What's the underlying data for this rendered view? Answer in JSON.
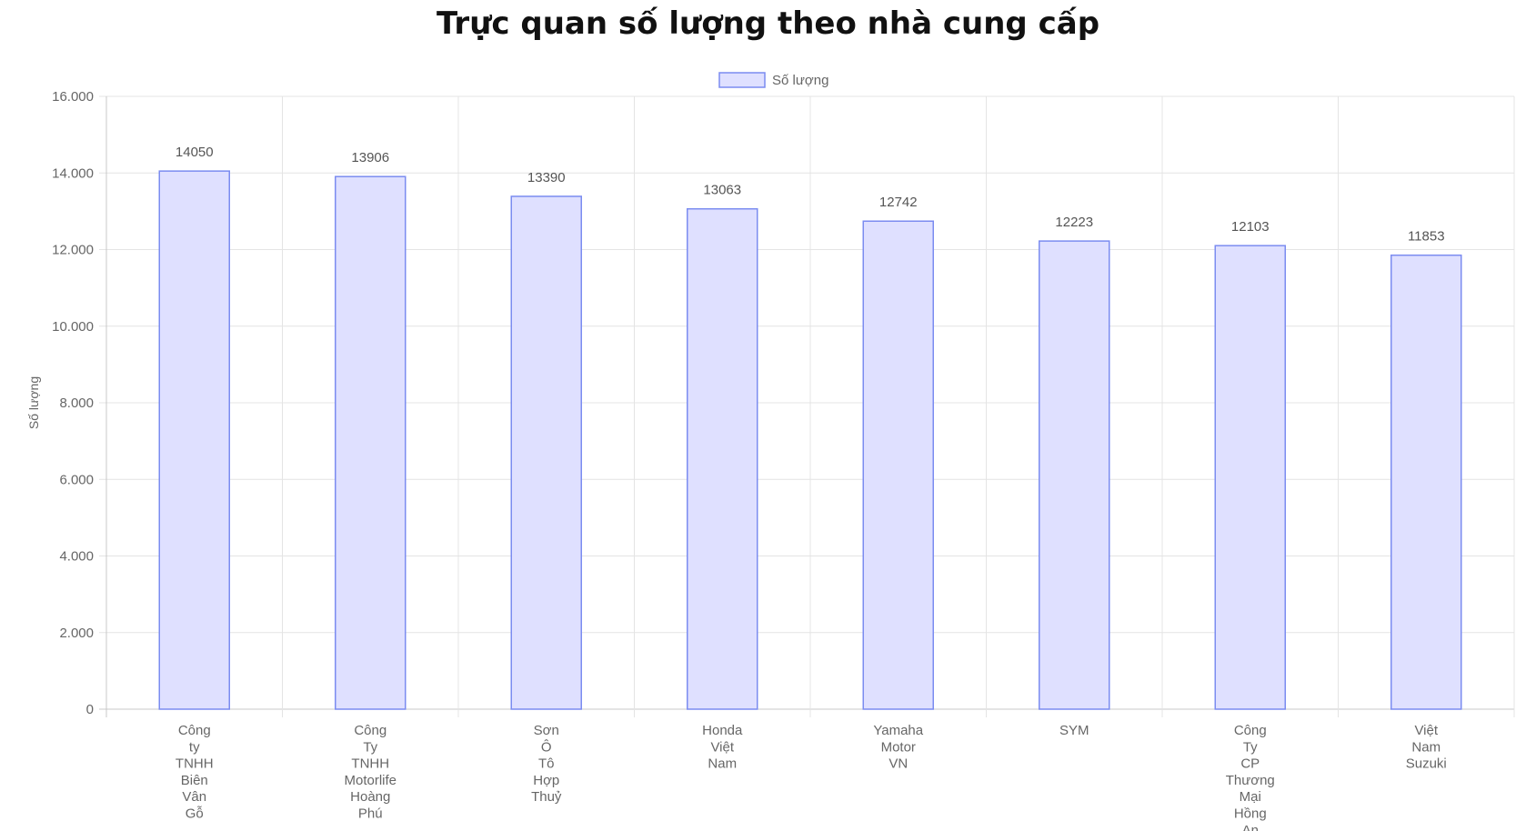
{
  "chart_data": {
    "type": "bar",
    "title": "Trực quan số lượng theo nhà cung cấp",
    "ylabel": "Số lượng",
    "xlabel": "",
    "legend": {
      "position": "top",
      "entries": [
        "Số lượng"
      ]
    },
    "ylim": [
      0,
      16000
    ],
    "y_ticks": [
      "0",
      "2.000",
      "4.000",
      "6.000",
      "8.000",
      "10.000",
      "12.000",
      "14.000",
      "16.000"
    ],
    "grid": true,
    "categories": [
      [
        "Công",
        "ty",
        "TNHH",
        "Biên",
        "Vân",
        "Gỗ"
      ],
      [
        "Công",
        "Ty",
        "TNHH",
        "Motorlife",
        "Hoàng",
        "Phú"
      ],
      [
        "Sơn",
        "Ô",
        "Tô",
        "Hợp",
        "Thuỷ"
      ],
      [
        "Honda",
        "Việt",
        "Nam"
      ],
      [
        "Yamaha",
        "Motor",
        "VN"
      ],
      [
        "SYM"
      ],
      [
        "Công",
        "Ty",
        "CP",
        "Thương",
        "Mại",
        "Hồng",
        "An"
      ],
      [
        "Việt",
        "Nam",
        "Suzuki"
      ]
    ],
    "series": [
      {
        "name": "Số lượng",
        "values": [
          14050,
          13906,
          13390,
          13063,
          12742,
          12223,
          12103,
          11853
        ],
        "fill_color": "#dfe0ff",
        "border_color": "#7b8cf0"
      }
    ]
  }
}
